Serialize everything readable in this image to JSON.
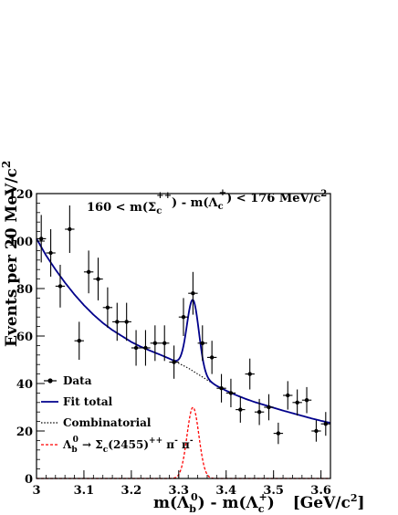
{
  "chart_data": {
    "type": "scatter",
    "xlabel_main": "m(Λ",
    "xlabel_sub": "b",
    "xlabel_sup": "0",
    "xlabel_mid": ") - m(Λ",
    "xlabel_sub2": "c",
    "xlabel_sup2": "+",
    "xlabel_tail": ")",
    "xlabel_units": "[GeV/c",
    "xlabel_units_sup": "2",
    "xlabel_units_close": "]",
    "ylabel": "Events per 20 MeV/c",
    "ylabel_sup": "2",
    "annotation": {
      "pre": "160 < m(Σ",
      "sub": "c",
      "sup": "++",
      "mid": ") - m(Λ",
      "sub2": "c",
      "sup2": "+",
      "post": ") < 176 MeV/c",
      "post_sup": "2"
    },
    "xlim": [
      3.0,
      3.62
    ],
    "ylim": [
      0,
      120
    ],
    "x_ticks": [
      "3",
      "3.1",
      "3.2",
      "3.3",
      "3.4",
      "3.5",
      "3.6"
    ],
    "y_ticks": [
      "0",
      "20",
      "40",
      "60",
      "80",
      "100",
      "120"
    ],
    "legend": {
      "placement": "bottom-left",
      "data_label": "Data",
      "fit_label": "Fit total",
      "comb_label": "Combinatorial",
      "signal_label_a": "Λ",
      "signal_label_a_sub": "b",
      "signal_label_a_sup": "0",
      "signal_label_b": " → Σ",
      "signal_label_b_sub": "c",
      "signal_label_c": "(2455)",
      "signal_label_c_sup": "++",
      "signal_label_d": " π",
      "signal_label_d_sup": "-",
      "signal_label_e": " π",
      "signal_label_e_sup": "-"
    },
    "colors": {
      "fit": "#00008b",
      "combinatorial": "#000000",
      "signal": "#ff0000",
      "data": "#000000"
    },
    "bin_half_width": 0.01,
    "data_points": [
      {
        "x": 3.01,
        "y": 101,
        "err": 10
      },
      {
        "x": 3.03,
        "y": 95,
        "err": 10
      },
      {
        "x": 3.05,
        "y": 81,
        "err": 9
      },
      {
        "x": 3.07,
        "y": 105,
        "err": 10
      },
      {
        "x": 3.09,
        "y": 58,
        "err": 8
      },
      {
        "x": 3.11,
        "y": 87,
        "err": 9
      },
      {
        "x": 3.13,
        "y": 84,
        "err": 9
      },
      {
        "x": 3.15,
        "y": 72,
        "err": 8.5
      },
      {
        "x": 3.17,
        "y": 66,
        "err": 8
      },
      {
        "x": 3.19,
        "y": 66,
        "err": 8
      },
      {
        "x": 3.21,
        "y": 55,
        "err": 7.5
      },
      {
        "x": 3.23,
        "y": 55,
        "err": 7.5
      },
      {
        "x": 3.25,
        "y": 57,
        "err": 7.5
      },
      {
        "x": 3.27,
        "y": 57,
        "err": 7.5
      },
      {
        "x": 3.29,
        "y": 49,
        "err": 7
      },
      {
        "x": 3.31,
        "y": 68,
        "err": 8
      },
      {
        "x": 3.33,
        "y": 78,
        "err": 9
      },
      {
        "x": 3.35,
        "y": 57,
        "err": 7.5
      },
      {
        "x": 3.37,
        "y": 51,
        "err": 7
      },
      {
        "x": 3.39,
        "y": 38,
        "err": 6
      },
      {
        "x": 3.41,
        "y": 36,
        "err": 6
      },
      {
        "x": 3.43,
        "y": 29,
        "err": 5.5
      },
      {
        "x": 3.45,
        "y": 44,
        "err": 6.5
      },
      {
        "x": 3.47,
        "y": 28,
        "err": 5.5
      },
      {
        "x": 3.49,
        "y": 30,
        "err": 5.5
      },
      {
        "x": 3.51,
        "y": 19,
        "err": 4.5
      },
      {
        "x": 3.53,
        "y": 35,
        "err": 6
      },
      {
        "x": 3.55,
        "y": 32,
        "err": 5.5
      },
      {
        "x": 3.57,
        "y": 33,
        "err": 5.5
      },
      {
        "x": 3.59,
        "y": 20,
        "err": 4.5
      },
      {
        "x": 3.61,
        "y": 23,
        "err": 5
      }
    ],
    "combinatorial_curve": [
      [
        3.0,
        101
      ],
      [
        3.02,
        94
      ],
      [
        3.04,
        88
      ],
      [
        3.06,
        82.5
      ],
      [
        3.08,
        77.5
      ],
      [
        3.1,
        73
      ],
      [
        3.12,
        69
      ],
      [
        3.14,
        65.5
      ],
      [
        3.16,
        62.5
      ],
      [
        3.18,
        60
      ],
      [
        3.2,
        57.5
      ],
      [
        3.22,
        55.5
      ],
      [
        3.24,
        53.8
      ],
      [
        3.26,
        52.2
      ],
      [
        3.28,
        50.5
      ],
      [
        3.3,
        48.5
      ],
      [
        3.32,
        46.5
      ],
      [
        3.34,
        44
      ],
      [
        3.36,
        41.5
      ],
      [
        3.38,
        39
      ],
      [
        3.4,
        37
      ],
      [
        3.42,
        35.2
      ],
      [
        3.44,
        33.6
      ],
      [
        3.46,
        32.2
      ],
      [
        3.48,
        31
      ],
      [
        3.5,
        29.8
      ],
      [
        3.52,
        28.6
      ],
      [
        3.54,
        27.5
      ],
      [
        3.56,
        26.4
      ],
      [
        3.58,
        25.3
      ],
      [
        3.6,
        24.3
      ],
      [
        3.62,
        23.4
      ]
    ],
    "signal": {
      "mean": 3.33,
      "sigma": 0.0125,
      "amplitude": 30
    }
  }
}
